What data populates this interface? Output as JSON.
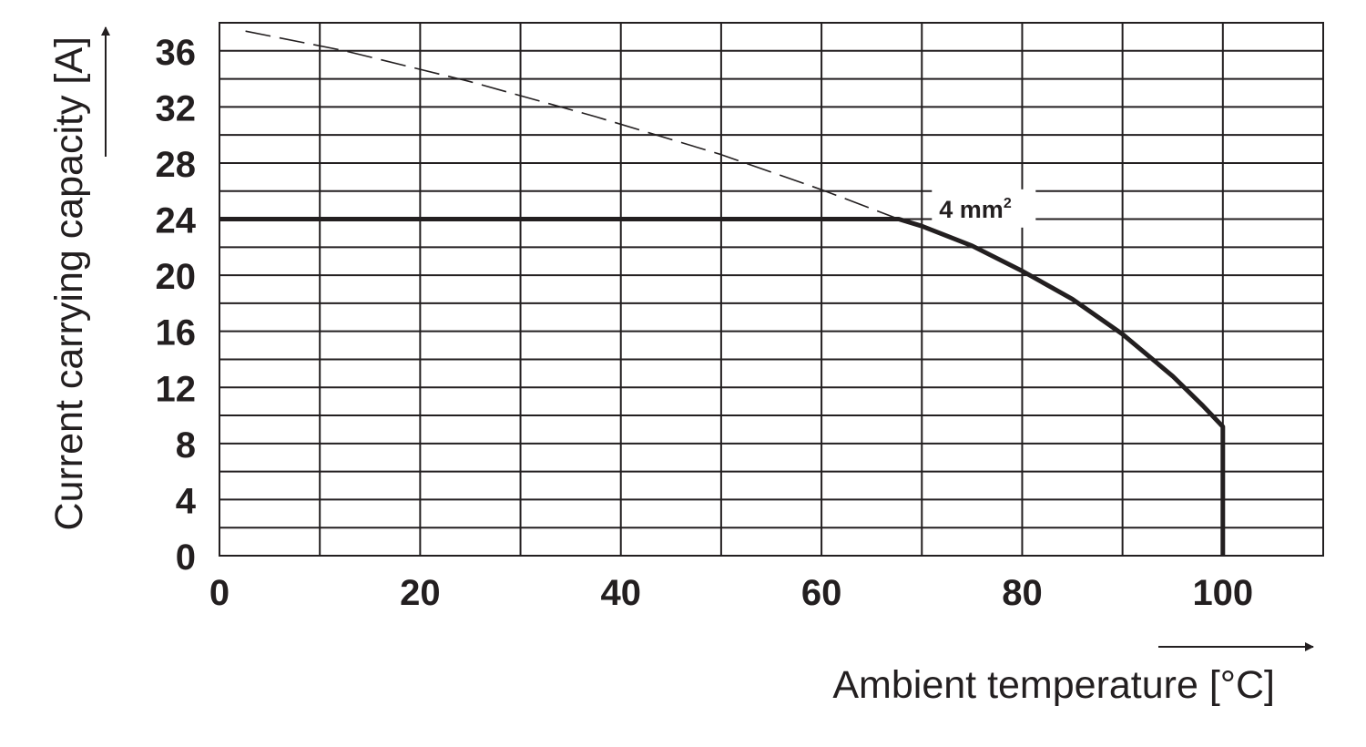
{
  "chart_data": {
    "type": "line",
    "xlabel": "Ambient temperature [°C]",
    "ylabel": "Current carrying capacity [A]",
    "xlim": [
      0,
      110
    ],
    "ylim": [
      0,
      38
    ],
    "x_ticks": [
      0,
      20,
      40,
      60,
      80,
      100
    ],
    "y_ticks": [
      0,
      4,
      8,
      12,
      16,
      20,
      24,
      28,
      32,
      36
    ],
    "x_grid_step": 10,
    "y_grid_step": 2,
    "grid": true,
    "series": [
      {
        "name": "4 mm²",
        "style": "solid",
        "points": [
          [
            0,
            24
          ],
          [
            67.7,
            24
          ],
          [
            70,
            23.5
          ],
          [
            75,
            22.1
          ],
          [
            80,
            20.3
          ],
          [
            85,
            18.3
          ],
          [
            90,
            15.8
          ],
          [
            95,
            12.8
          ],
          [
            98,
            10.7
          ],
          [
            100,
            9.2
          ],
          [
            100,
            0
          ]
        ]
      },
      {
        "name": "",
        "style": "dashed",
        "points": [
          [
            2.6,
            37.4
          ],
          [
            12.5,
            36
          ],
          [
            25,
            33.8
          ],
          [
            37.5,
            31.3
          ],
          [
            50,
            28.6
          ],
          [
            60,
            26.1
          ],
          [
            67.7,
            24
          ]
        ]
      }
    ],
    "annotations": [
      {
        "text_main": "4 mm",
        "text_sup": "2",
        "x": 71,
        "y": 24.5
      }
    ]
  }
}
